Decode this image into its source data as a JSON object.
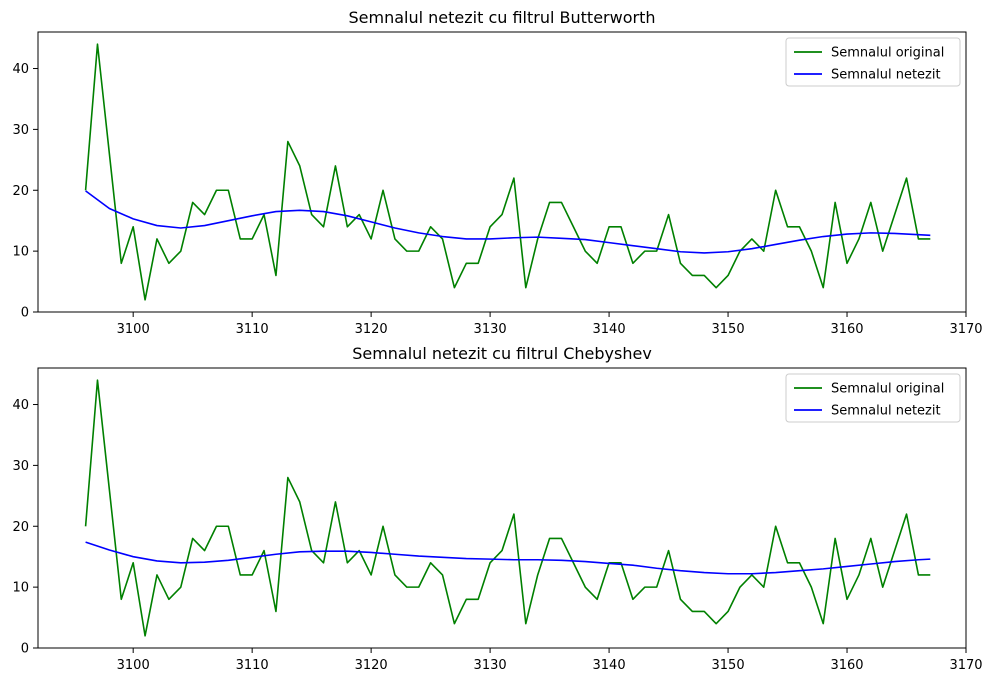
{
  "chart_data": [
    {
      "type": "line",
      "title": "Semnalul netezit cu filtrul Butterworth",
      "xlabel": "",
      "ylabel": "",
      "xlim": [
        3092,
        3170
      ],
      "ylim": [
        0,
        46
      ],
      "xticks": [
        3100,
        3110,
        3120,
        3130,
        3140,
        3150,
        3160,
        3170
      ],
      "yticks": [
        0,
        10,
        20,
        30,
        40
      ],
      "grid": false,
      "legend_position": "top-right",
      "series": [
        {
          "name": "Semnalul original",
          "color": "#008000",
          "x": [
            3096,
            3097,
            3098,
            3099,
            3100,
            3101,
            3102,
            3103,
            3104,
            3105,
            3106,
            3107,
            3108,
            3109,
            3110,
            3111,
            3112,
            3113,
            3114,
            3115,
            3116,
            3117,
            3118,
            3119,
            3120,
            3121,
            3122,
            3123,
            3124,
            3125,
            3126,
            3127,
            3128,
            3129,
            3130,
            3131,
            3132,
            3133,
            3134,
            3135,
            3136,
            3137,
            3138,
            3139,
            3140,
            3141,
            3142,
            3143,
            3144,
            3145,
            3146,
            3147,
            3148,
            3149,
            3150,
            3151,
            3152,
            3153,
            3154,
            3155,
            3156,
            3157,
            3158,
            3159,
            3160,
            3161,
            3162,
            3163,
            3164,
            3165,
            3166,
            3167
          ],
          "y": [
            20,
            44,
            26,
            8,
            14,
            2,
            12,
            8,
            10,
            18,
            16,
            20,
            20,
            12,
            12,
            16,
            6,
            28,
            24,
            16,
            14,
            24,
            14,
            16,
            12,
            20,
            12,
            10,
            10,
            14,
            12,
            4,
            8,
            8,
            14,
            16,
            22,
            4,
            12,
            18,
            18,
            14,
            10,
            8,
            14,
            14,
            8,
            10,
            10,
            16,
            8,
            6,
            6,
            4,
            6,
            10,
            12,
            10,
            20,
            14,
            14,
            10,
            4,
            18,
            8,
            12,
            18,
            10,
            16,
            22,
            12,
            12
          ]
        },
        {
          "name": "Semnalul netezit",
          "color": "#0000ff",
          "x": [
            3096,
            3098,
            3100,
            3102,
            3104,
            3106,
            3108,
            3110,
            3112,
            3114,
            3116,
            3118,
            3120,
            3122,
            3124,
            3126,
            3128,
            3130,
            3132,
            3134,
            3136,
            3138,
            3140,
            3142,
            3144,
            3146,
            3148,
            3150,
            3152,
            3154,
            3156,
            3158,
            3160,
            3162,
            3164,
            3166,
            3167
          ],
          "y": [
            19.9,
            17.0,
            15.3,
            14.2,
            13.8,
            14.2,
            15.0,
            15.8,
            16.5,
            16.7,
            16.5,
            15.8,
            14.8,
            13.8,
            13.0,
            12.4,
            12.0,
            12.0,
            12.2,
            12.3,
            12.1,
            11.9,
            11.4,
            10.9,
            10.4,
            9.9,
            9.7,
            9.9,
            10.4,
            11.1,
            11.8,
            12.4,
            12.8,
            13.0,
            12.9,
            12.7,
            12.6
          ]
        }
      ]
    },
    {
      "type": "line",
      "title": "Semnalul netezit cu filtrul Chebyshev",
      "xlabel": "",
      "ylabel": "",
      "xlim": [
        3092,
        3170
      ],
      "ylim": [
        0,
        46
      ],
      "xticks": [
        3100,
        3110,
        3120,
        3130,
        3140,
        3150,
        3160,
        3170
      ],
      "yticks": [
        0,
        10,
        20,
        30,
        40
      ],
      "grid": false,
      "legend_position": "top-right",
      "series": [
        {
          "name": "Semnalul original",
          "color": "#008000",
          "x": [
            3096,
            3097,
            3098,
            3099,
            3100,
            3101,
            3102,
            3103,
            3104,
            3105,
            3106,
            3107,
            3108,
            3109,
            3110,
            3111,
            3112,
            3113,
            3114,
            3115,
            3116,
            3117,
            3118,
            3119,
            3120,
            3121,
            3122,
            3123,
            3124,
            3125,
            3126,
            3127,
            3128,
            3129,
            3130,
            3131,
            3132,
            3133,
            3134,
            3135,
            3136,
            3137,
            3138,
            3139,
            3140,
            3141,
            3142,
            3143,
            3144,
            3145,
            3146,
            3147,
            3148,
            3149,
            3150,
            3151,
            3152,
            3153,
            3154,
            3155,
            3156,
            3157,
            3158,
            3159,
            3160,
            3161,
            3162,
            3163,
            3164,
            3165,
            3166,
            3167
          ],
          "y": [
            20,
            44,
            26,
            8,
            14,
            2,
            12,
            8,
            10,
            18,
            16,
            20,
            20,
            12,
            12,
            16,
            6,
            28,
            24,
            16,
            14,
            24,
            14,
            16,
            12,
            20,
            12,
            10,
            10,
            14,
            12,
            4,
            8,
            8,
            14,
            16,
            22,
            4,
            12,
            18,
            18,
            14,
            10,
            8,
            14,
            14,
            8,
            10,
            10,
            16,
            8,
            6,
            6,
            4,
            6,
            10,
            12,
            10,
            20,
            14,
            14,
            10,
            4,
            18,
            8,
            12,
            18,
            10,
            16,
            22,
            12,
            12
          ]
        },
        {
          "name": "Semnalul netezit",
          "color": "#0000ff",
          "x": [
            3096,
            3098,
            3100,
            3102,
            3104,
            3106,
            3108,
            3110,
            3112,
            3114,
            3116,
            3118,
            3120,
            3122,
            3124,
            3126,
            3128,
            3130,
            3132,
            3134,
            3136,
            3138,
            3140,
            3142,
            3144,
            3146,
            3148,
            3150,
            3152,
            3154,
            3156,
            3158,
            3160,
            3162,
            3164,
            3166,
            3167
          ],
          "y": [
            17.4,
            16.1,
            15.0,
            14.3,
            14.0,
            14.1,
            14.4,
            14.9,
            15.4,
            15.8,
            15.9,
            15.9,
            15.7,
            15.4,
            15.1,
            14.9,
            14.7,
            14.6,
            14.5,
            14.5,
            14.4,
            14.2,
            13.9,
            13.6,
            13.1,
            12.7,
            12.4,
            12.2,
            12.2,
            12.4,
            12.7,
            13.0,
            13.4,
            13.8,
            14.2,
            14.5,
            14.6
          ]
        }
      ]
    }
  ]
}
